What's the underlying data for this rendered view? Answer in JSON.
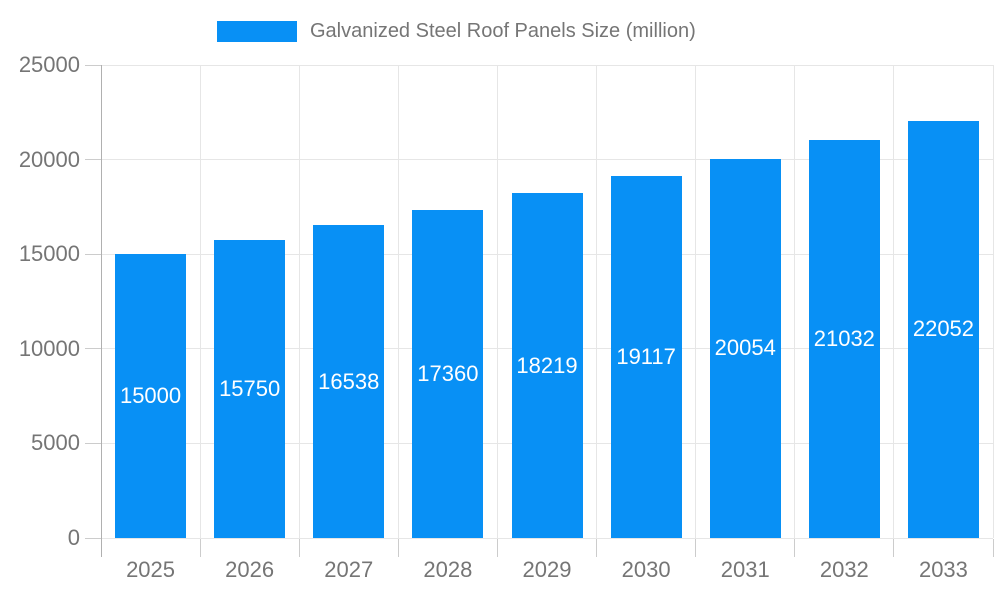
{
  "legend": {
    "label": "Galvanized Steel Roof Panels Size (million)"
  },
  "colors": {
    "bar": "#0890f5",
    "axis_text": "#757575",
    "gridline": "#e6e6e6",
    "tick": "#cccccc",
    "axis_line": "#b0b0b0",
    "bar_label_text": "#ffffff",
    "background": "#ffffff"
  },
  "chart_data": {
    "type": "bar",
    "title": "Galvanized Steel Roof Panels Size (million)",
    "categories": [
      "2025",
      "2026",
      "2027",
      "2028",
      "2029",
      "2030",
      "2031",
      "2032",
      "2033"
    ],
    "values": [
      15000,
      15750,
      16538,
      17360,
      18219,
      19117,
      20054,
      21032,
      22052
    ],
    "xlabel": "",
    "ylabel": "",
    "ylim": [
      0,
      25000
    ],
    "yticks": [
      0,
      5000,
      10000,
      15000,
      20000,
      25000
    ],
    "grid": "horizontal gridlines at y ticks and vertical gridlines at category boundaries",
    "legend_position": "top-center",
    "value_labels": "white, centered inside bars"
  }
}
